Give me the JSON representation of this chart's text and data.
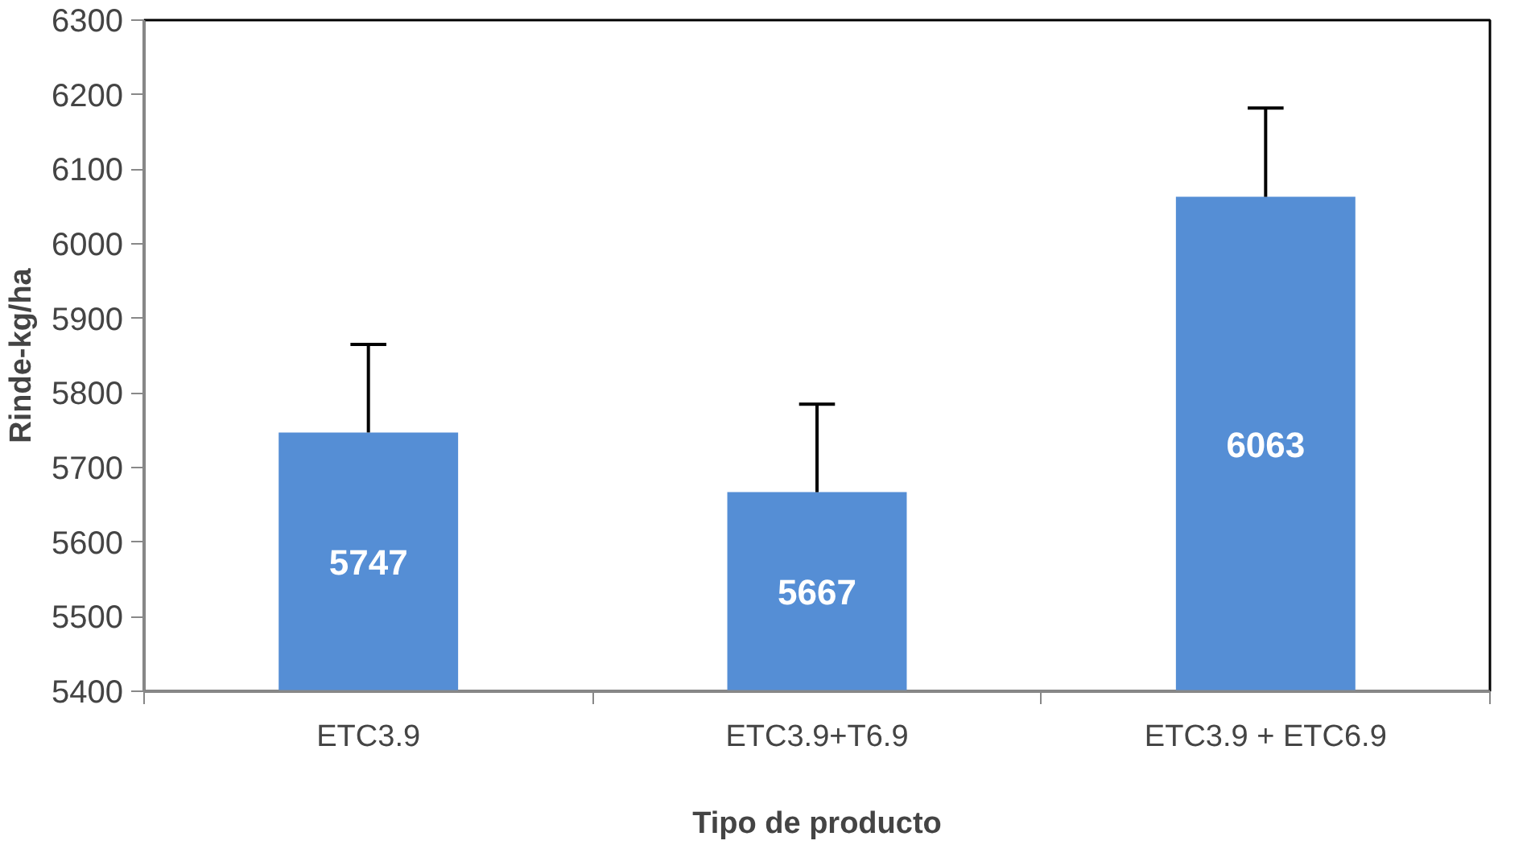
{
  "chart_data": {
    "type": "bar",
    "xlabel": "Tipo de producto",
    "ylabel": "Rinde-kg/ha",
    "categories": [
      "ETC3.9",
      "ETC3.9+T6.9",
      "ETC3.9 + ETC6.9"
    ],
    "values": [
      5747,
      5667,
      6063
    ],
    "color": "#558ed5",
    "errors": [
      [
        5747,
        5865
      ],
      [
        5667,
        5785
      ],
      [
        6063,
        6182
      ]
    ],
    "ylim": [
      5400,
      6300
    ],
    "yticks": [
      5400,
      5500,
      5600,
      5700,
      5800,
      5900,
      6000,
      6100,
      6200,
      6300
    ],
    "data_labels": true,
    "grid": false
  }
}
